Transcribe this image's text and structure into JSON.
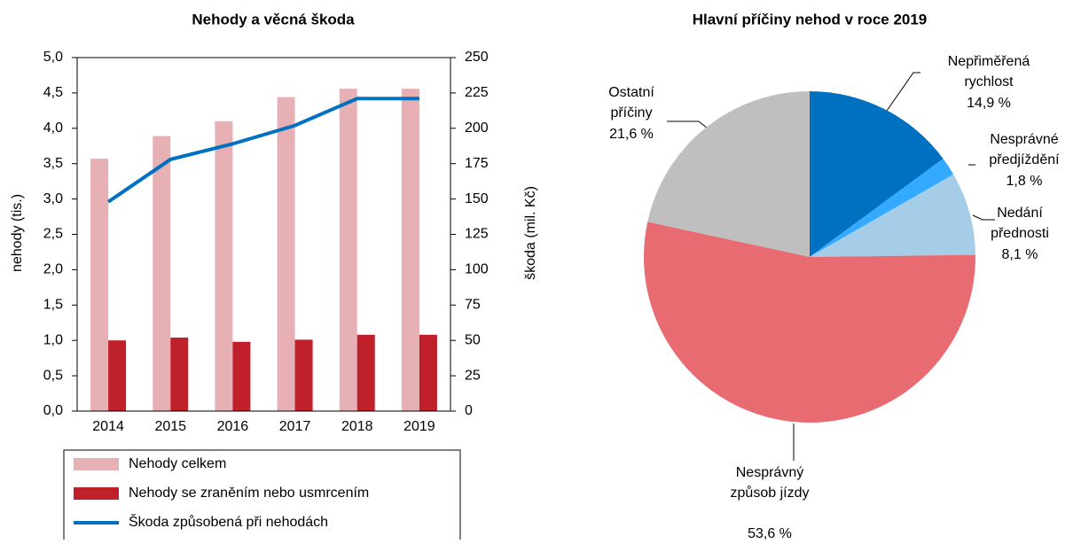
{
  "chart_data": [
    {
      "type": "bar_line",
      "title": "Nehody a věcná škoda",
      "categories": [
        "2014",
        "2015",
        "2016",
        "2017",
        "2018",
        "2019"
      ],
      "y_label": "nehody (tis.)",
      "y2_label": "škoda (mil. Kč)",
      "ylim": [
        0,
        5
      ],
      "yticks": [
        {
          "value": 0,
          "label": "0,0"
        },
        {
          "value": 0.5,
          "label": "0,5"
        },
        {
          "value": 1,
          "label": "1,0"
        },
        {
          "value": 1.5,
          "label": "1,5"
        },
        {
          "value": 2,
          "label": "2,0"
        },
        {
          "value": 2.5,
          "label": "2,5"
        },
        {
          "value": 3,
          "label": "3,0"
        },
        {
          "value": 3.5,
          "label": "3,5"
        },
        {
          "value": 4,
          "label": "4,0"
        },
        {
          "value": 4.5,
          "label": "4,5"
        },
        {
          "value": 5,
          "label": "5,0"
        }
      ],
      "y2lim": [
        0,
        250
      ],
      "y2ticks": [
        0,
        25,
        50,
        75,
        100,
        125,
        150,
        175,
        200,
        225,
        250
      ],
      "series": [
        {
          "name": "Nehody celkem",
          "type": "bar",
          "color": "#e6b0b5",
          "values": [
            3.57,
            3.89,
            4.1,
            4.44,
            4.56,
            4.56
          ]
        },
        {
          "name": "Nehody se zraněním nebo usmrcením",
          "type": "bar",
          "color": "#c0202a",
          "values": [
            1.0,
            1.04,
            0.98,
            1.01,
            1.08,
            1.08
          ]
        },
        {
          "name": "Škoda způsobená při nehodách",
          "type": "line",
          "axis": "y2",
          "color": "#0070c0",
          "values": [
            148,
            178,
            189,
            202,
            221,
            221
          ]
        }
      ]
    },
    {
      "type": "pie",
      "title": "Hlavní příčiny nehod v roce 2019",
      "categories": [
        "Nepřiměřená rychlost",
        "Nesprávné předjíždění",
        "Nedání přednosti",
        "Nesprávný způsob jízdy",
        "Ostatní příčiny"
      ],
      "values": [
        14.9,
        1.8,
        8.1,
        53.6,
        21.6
      ],
      "value_labels": [
        "14,9 %",
        "1,8 %",
        "8,1 %",
        "53,6 %",
        "21,6 %"
      ],
      "colors": [
        "#0070c0",
        "#33aaff",
        "#a6cde8",
        "#e96b72",
        "#bfbfbf"
      ]
    }
  ]
}
